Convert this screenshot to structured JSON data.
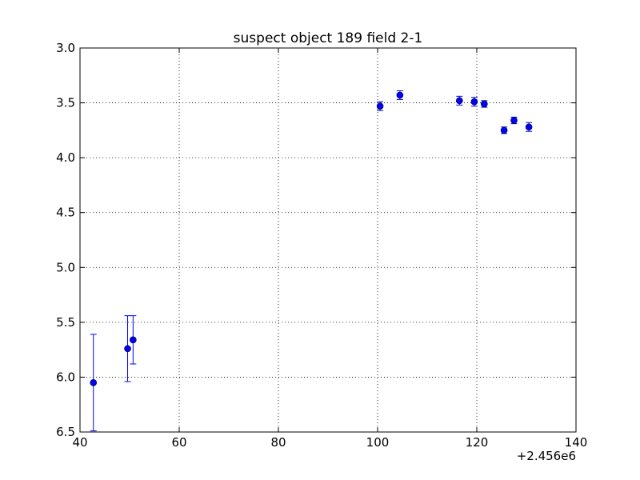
{
  "chart_data": {
    "type": "scatter",
    "title": "suspect object 189 field 2-1",
    "xlabel": "",
    "ylabel": "",
    "x_offset_label": "+2.456e6",
    "xlim": [
      40,
      140
    ],
    "ylim": [
      3.0,
      6.5
    ],
    "y_inverted": true,
    "grid": true,
    "x_ticks": [
      "40",
      "60",
      "80",
      "100",
      "120",
      "140"
    ],
    "y_ticks": [
      "3.0",
      "3.5",
      "4.0",
      "4.5",
      "5.0",
      "5.5",
      "6.0",
      "6.5"
    ],
    "marker_color": "#0000ff",
    "errorbar_color": "#0000ff",
    "points": [
      {
        "x": 42.7,
        "y": 6.05,
        "err": 0.44
      },
      {
        "x": 49.6,
        "y": 5.74,
        "err": 0.3
      },
      {
        "x": 50.7,
        "y": 5.66,
        "err": 0.22
      },
      {
        "x": 100.5,
        "y": 3.53,
        "err": 0.04
      },
      {
        "x": 104.5,
        "y": 3.43,
        "err": 0.04
      },
      {
        "x": 116.5,
        "y": 3.48,
        "err": 0.04
      },
      {
        "x": 119.5,
        "y": 3.49,
        "err": 0.04
      },
      {
        "x": 121.5,
        "y": 3.51,
        "err": 0.03
      },
      {
        "x": 125.5,
        "y": 3.75,
        "err": 0.03
      },
      {
        "x": 127.5,
        "y": 3.66,
        "err": 0.03
      },
      {
        "x": 130.5,
        "y": 3.72,
        "err": 0.04
      }
    ]
  }
}
